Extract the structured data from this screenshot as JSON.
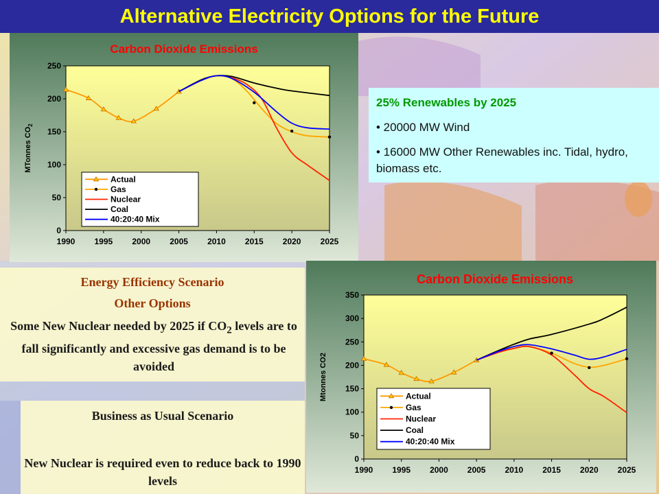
{
  "slide": {
    "title": "Alternative Electricity Options for the Future"
  },
  "renewables": {
    "title": "25% Renewables by 2025",
    "bullet1": "•  20000 MW Wind",
    "bullet2": "• 16000 MW Other Renewables inc. Tidal, hydro, biomass etc."
  },
  "efficiency": {
    "title": "Energy Efficiency Scenario",
    "subtitle": "Other Options",
    "body_pre": "Some New Nuclear needed by 2025 if CO",
    "body_sub": "2",
    "body_post": " levels are to fall significantly and excessive gas demand is to be avoided"
  },
  "bau": {
    "title": "Business as Usual Scenario",
    "body": "New Nuclear is required even to reduce back to 1990 levels"
  },
  "colors": {
    "title_bar": "#2a2a9c",
    "title_text": "#ffff00",
    "actual": "#ff9900",
    "gas": "#ffa500",
    "nuclear": "#ff2200",
    "coal": "#000000",
    "mix": "#0000ff",
    "chart_title": "#ff0000"
  },
  "chart_data": [
    {
      "type": "line",
      "title": "Carbon Dioxide Emissions",
      "ylabel_main": "MTonnes CO",
      "ylabel_sub": "2",
      "xlabel": "",
      "xlim": [
        1990,
        2025
      ],
      "ylim": [
        0,
        250
      ],
      "xticks": [
        1990,
        1995,
        2000,
        2005,
        2010,
        2015,
        2020,
        2025
      ],
      "yticks": [
        0,
        50,
        100,
        150,
        200,
        250
      ],
      "grid": false,
      "legend_position": "bottom-left",
      "series": [
        {
          "name": "Actual",
          "color": "#ff9900",
          "marker": "triangle",
          "x": [
            1990,
            1993,
            1995,
            1997,
            1999,
            2002,
            2005
          ],
          "y": [
            214,
            201,
            184,
            171,
            166,
            185,
            211
          ]
        },
        {
          "name": "Gas",
          "color": "#ffa500",
          "marker": "dot",
          "x": [
            2005,
            2008,
            2010,
            2012,
            2014,
            2016,
            2018,
            2020,
            2022,
            2025
          ],
          "y": [
            211,
            228,
            235,
            231,
            212,
            185,
            162,
            150,
            144,
            142
          ]
        },
        {
          "name": "Nuclear",
          "color": "#ff2200",
          "marker": "none",
          "x": [
            2005,
            2008,
            2010,
            2012,
            2014,
            2016,
            2018,
            2020,
            2022,
            2025
          ],
          "y": [
            211,
            228,
            235,
            232,
            222,
            200,
            155,
            118,
            100,
            76
          ]
        },
        {
          "name": "Coal",
          "color": "#000000",
          "marker": "none",
          "x": [
            2005,
            2008,
            2010,
            2012,
            2015,
            2018,
            2020,
            2025
          ],
          "y": [
            211,
            229,
            235,
            234,
            224,
            216,
            212,
            205
          ]
        },
        {
          "name": "40:20:40 Mix",
          "color": "#0000ff",
          "marker": "none",
          "x": [
            2005,
            2008,
            2010,
            2012,
            2015,
            2018,
            2020,
            2022,
            2025
          ],
          "y": [
            211,
            228,
            235,
            231,
            210,
            180,
            163,
            156,
            154
          ]
        }
      ],
      "point_markers": [
        {
          "x": 2015,
          "y": 194
        },
        {
          "x": 2020,
          "y": 151
        },
        {
          "x": 2025,
          "y": 142
        }
      ]
    },
    {
      "type": "line",
      "title": "Carbon Dioxide Emissions",
      "ylabel_main": "Mtonnes CO2",
      "ylabel_sub": "",
      "xlabel": "",
      "xlim": [
        1990,
        2025
      ],
      "ylim": [
        0,
        350
      ],
      "xticks": [
        1990,
        1995,
        2000,
        2005,
        2010,
        2015,
        2020,
        2025
      ],
      "yticks": [
        0,
        50,
        100,
        150,
        200,
        250,
        300,
        350
      ],
      "grid": false,
      "legend_position": "bottom-left",
      "series": [
        {
          "name": "Actual",
          "color": "#ff9900",
          "marker": "triangle",
          "x": [
            1990,
            1993,
            1995,
            1997,
            1999,
            2002,
            2005
          ],
          "y": [
            214,
            201,
            184,
            171,
            166,
            185,
            211
          ]
        },
        {
          "name": "Gas",
          "color": "#ffa500",
          "marker": "dot",
          "x": [
            2005,
            2008,
            2010,
            2012,
            2015,
            2018,
            2020,
            2022,
            2025
          ],
          "y": [
            211,
            228,
            236,
            240,
            226,
            204,
            196,
            200,
            214
          ]
        },
        {
          "name": "Nuclear",
          "color": "#ff2200",
          "marker": "none",
          "x": [
            2005,
            2008,
            2010,
            2012,
            2015,
            2018,
            2020,
            2022,
            2025
          ],
          "y": [
            211,
            228,
            236,
            240,
            222,
            180,
            150,
            133,
            99
          ]
        },
        {
          "name": "Coal",
          "color": "#000000",
          "marker": "none",
          "x": [
            2005,
            2008,
            2010,
            2012,
            2015,
            2020,
            2022,
            2025
          ],
          "y": [
            211,
            232,
            245,
            256,
            266,
            288,
            300,
            324
          ]
        },
        {
          "name": "40:20:40 Mix",
          "color": "#0000ff",
          "marker": "none",
          "x": [
            2005,
            2008,
            2010,
            2012,
            2015,
            2018,
            2020,
            2022,
            2025
          ],
          "y": [
            211,
            230,
            240,
            244,
            235,
            222,
            213,
            218,
            234
          ]
        }
      ],
      "point_markers": [
        {
          "x": 2015,
          "y": 226
        },
        {
          "x": 2020,
          "y": 195
        },
        {
          "x": 2025,
          "y": 214
        }
      ]
    }
  ]
}
